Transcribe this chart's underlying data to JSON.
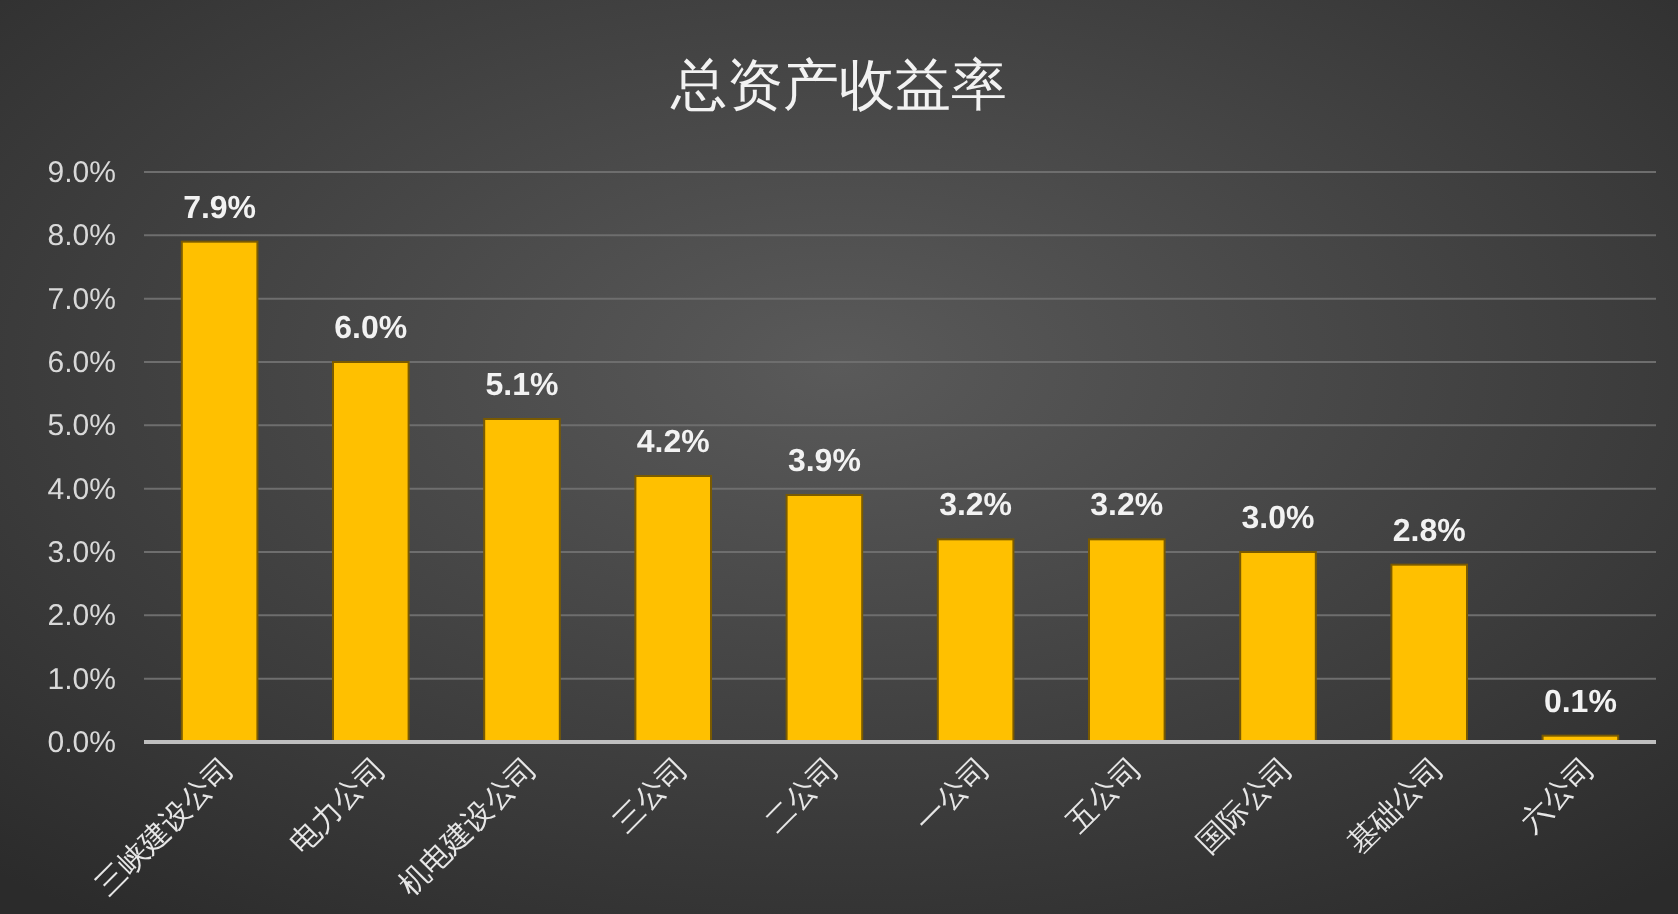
{
  "chart_data": {
    "type": "bar",
    "title": "总资产收益率",
    "categories": [
      "三峡建设公司",
      "电力公司",
      "机电建设公司",
      "三公司",
      "二公司",
      "一公司",
      "五公司",
      "国际公司",
      "基础公司",
      "六公司"
    ],
    "values": [
      7.9,
      6.0,
      5.1,
      4.2,
      3.9,
      3.2,
      3.2,
      3.0,
      2.8,
      0.1
    ],
    "value_labels": [
      "7.9%",
      "6.0%",
      "5.1%",
      "4.2%",
      "3.9%",
      "3.2%",
      "3.2%",
      "3.0%",
      "2.8%",
      "0.1%"
    ],
    "color": "#ffc000",
    "ylim": [
      0,
      9
    ],
    "yticks": [
      {
        "value": 0,
        "label": "0.0%"
      },
      {
        "value": 1,
        "label": "1.0%"
      },
      {
        "value": 2,
        "label": "2.0%"
      },
      {
        "value": 3,
        "label": "3.0%"
      },
      {
        "value": 4,
        "label": "4.0%"
      },
      {
        "value": 5,
        "label": "5.0%"
      },
      {
        "value": 6,
        "label": "6.0%"
      },
      {
        "value": 7,
        "label": "7.0%"
      },
      {
        "value": 8,
        "label": "8.0%"
      },
      {
        "value": 9,
        "label": "9.0%"
      }
    ],
    "grid": "y"
  }
}
